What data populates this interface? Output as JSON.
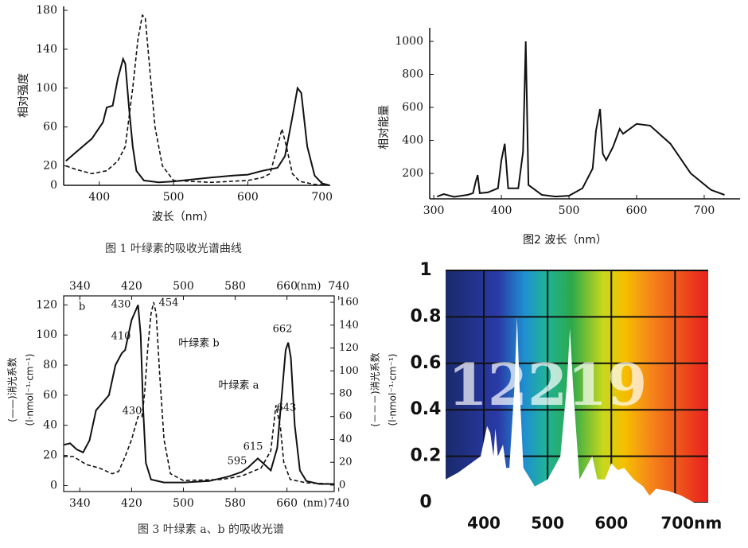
{
  "chart_data": [
    {
      "type": "line",
      "ylabel": "相对强度",
      "xlabel": "波长（nm）",
      "caption": "图 1  叶绿素的吸收光谱曲线",
      "xlim": [
        352,
        711
      ],
      "ylim": [
        0,
        180
      ],
      "xticks": [
        400,
        500,
        600,
        700
      ],
      "yticks": [
        0,
        20,
        60,
        100,
        140,
        180
      ],
      "series": [
        {
          "color": "#111",
          "style": "solid",
          "x": [
            355,
            370,
            390,
            405,
            410,
            418,
            425,
            432,
            435,
            440,
            445,
            450,
            460,
            480,
            500,
            550,
            580,
            600,
            620,
            640,
            650,
            660,
            667,
            672,
            680,
            690,
            700,
            710
          ],
          "values": [
            25,
            35,
            48,
            65,
            80,
            82,
            110,
            130,
            125,
            80,
            40,
            15,
            5,
            3,
            4,
            8,
            10,
            11,
            15,
            18,
            30,
            70,
            100,
            95,
            40,
            10,
            2,
            0
          ]
        },
        {
          "color": "#111",
          "style": "dashed",
          "x": [
            355,
            370,
            390,
            410,
            425,
            435,
            445,
            452,
            458,
            462,
            468,
            475,
            485,
            500,
            550,
            600,
            620,
            630,
            640,
            646,
            652,
            660,
            670,
            690,
            710
          ],
          "values": [
            20,
            16,
            12,
            15,
            25,
            40,
            100,
            150,
            175,
            172,
            120,
            60,
            20,
            5,
            3,
            5,
            8,
            12,
            40,
            58,
            40,
            12,
            4,
            1,
            0
          ]
        }
      ]
    },
    {
      "type": "line",
      "ylabel": "相对能量",
      "xlabel": "图2 波长（nm）",
      "xlim": [
        294,
        753
      ],
      "ylim": [
        46,
        1058
      ],
      "xticks": [
        300,
        400,
        500,
        600,
        700
      ],
      "yticks": [
        200,
        400,
        600,
        800,
        1000
      ],
      "series": [
        {
          "color": "#111",
          "style": "solid",
          "x": [
            305,
            315,
            330,
            350,
            358,
            362,
            365,
            368,
            380,
            395,
            400,
            405,
            410,
            425,
            432,
            436,
            440,
            460,
            480,
            500,
            520,
            535,
            540,
            546,
            550,
            555,
            565,
            575,
            580,
            600,
            620,
            650,
            680,
            710,
            730
          ],
          "values": [
            60,
            75,
            58,
            70,
            80,
            150,
            190,
            80,
            85,
            110,
            280,
            380,
            110,
            110,
            330,
            1000,
            130,
            70,
            60,
            65,
            110,
            230,
            460,
            590,
            320,
            280,
            360,
            470,
            440,
            500,
            490,
            380,
            200,
            100,
            70
          ]
        }
      ]
    },
    {
      "type": "line",
      "caption": "图 3   叶绿素 a、b 的吸收光谱",
      "ylabel": [
        "(——)消光系数",
        "(l·nmol⁻¹·cm⁻¹)"
      ],
      "y2label": [
        "(－－－)消光系数",
        "(l·nmol⁻¹·cm⁻¹)"
      ],
      "x_unit": "(nm)",
      "xlim": [
        315,
        733
      ],
      "ylim": [
        -4,
        126
      ],
      "y2lim": [
        -5.6,
        165.6
      ],
      "xticks": [
        340,
        420,
        500,
        580,
        660,
        740
      ],
      "yticks": [
        0,
        20,
        40,
        60,
        80,
        100,
        120
      ],
      "y2ticks": [
        0,
        20,
        40,
        60,
        80,
        100,
        120,
        140,
        160
      ],
      "annotations": [
        "b",
        "430",
        "454",
        "410",
        "叶绿素 b",
        "662",
        "叶绿素 a",
        "430",
        "643",
        "615",
        "595"
      ],
      "series": [
        {
          "color": "#111",
          "style": "solid",
          "x": [
            315,
            325,
            335,
            345,
            355,
            365,
            375,
            385,
            395,
            405,
            410,
            415,
            420,
            428,
            430,
            434,
            438,
            442,
            450,
            470,
            500,
            540,
            570,
            590,
            600,
            615,
            625,
            635,
            645,
            652,
            658,
            662,
            666,
            672,
            680,
            690,
            710,
            733
          ],
          "values": [
            27,
            28,
            24,
            22,
            30,
            50,
            55,
            60,
            80,
            88,
            90,
            100,
            110,
            118,
            120,
            100,
            50,
            15,
            4,
            2,
            2,
            3,
            6,
            9,
            12,
            18,
            14,
            10,
            25,
            60,
            90,
            95,
            85,
            40,
            10,
            3,
            1,
            1
          ]
        },
        {
          "color": "#111",
          "style": "dashed",
          "axis": "y2",
          "x": [
            315,
            330,
            350,
            370,
            390,
            400,
            410,
            420,
            430,
            436,
            440,
            445,
            450,
            454,
            458,
            463,
            470,
            480,
            500,
            560,
            590,
            620,
            635,
            643,
            650,
            655,
            665,
            690,
            733
          ],
          "values": [
            25,
            25,
            18,
            15,
            10,
            12,
            25,
            40,
            60,
            60,
            80,
            120,
            150,
            160,
            150,
            100,
            40,
            10,
            4,
            5,
            8,
            15,
            30,
            70,
            50,
            20,
            5,
            2,
            1
          ]
        }
      ]
    },
    {
      "type": "area",
      "watermark": "12219",
      "color": "#ffffff",
      "xlim": [
        340,
        752
      ],
      "ylim": [
        0,
        1
      ],
      "xticks": [
        400,
        500,
        600,
        {
          "value": 700,
          "label": "700nm"
        }
      ],
      "yticks": [
        0,
        0.2,
        0.4,
        0.6,
        0.8,
        1
      ],
      "x": [
        340,
        360,
        380,
        395,
        405,
        410,
        415,
        418,
        422,
        430,
        435,
        440,
        448,
        452,
        456,
        462,
        480,
        500,
        520,
        530,
        535,
        540,
        550,
        560,
        570,
        578,
        590,
        600,
        610,
        620,
        635,
        650,
        660,
        670,
        690,
        710,
        730,
        752
      ],
      "values": [
        0.1,
        0.13,
        0.17,
        0.2,
        0.33,
        0.3,
        0.2,
        0.32,
        0.2,
        0.25,
        0.15,
        0.15,
        0.5,
        0.8,
        0.5,
        0.15,
        0.07,
        0.1,
        0.2,
        0.5,
        0.75,
        0.5,
        0.1,
        0.15,
        0.2,
        0.1,
        0.1,
        0.17,
        0.14,
        0.15,
        0.1,
        0.07,
        0.03,
        0.06,
        0.05,
        0.03,
        0,
        0
      ]
    }
  ]
}
